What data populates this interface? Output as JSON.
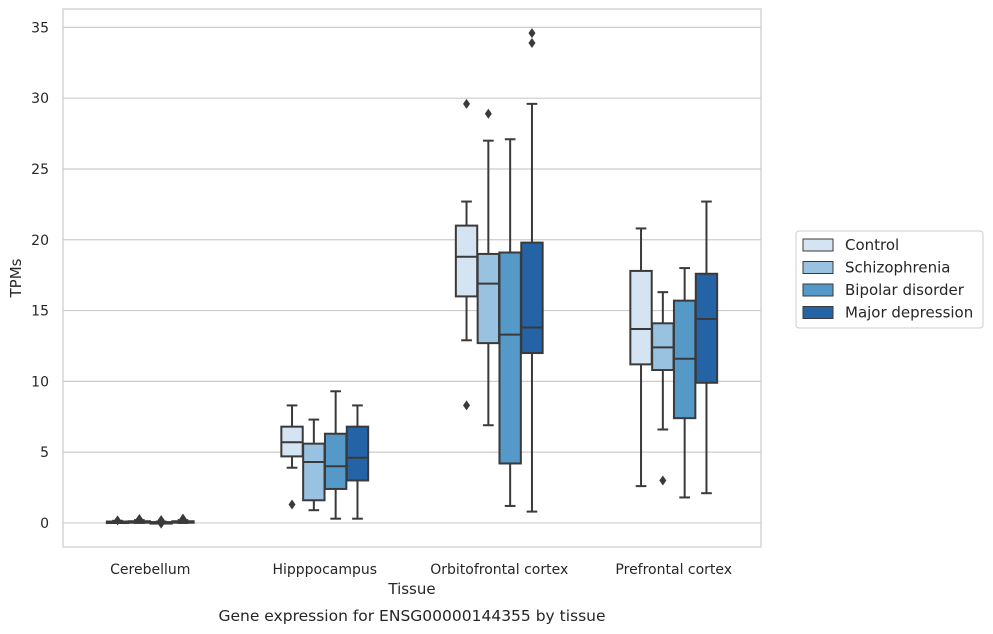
{
  "caption": "Gene expression for ENSG00000144355 by tissue",
  "colors": {
    "grid": "#cccccc",
    "frame": "#cccccc",
    "line": "#3a3a3a",
    "text": "#262626"
  },
  "chart_data": {
    "type": "box",
    "xlabel": "Tissue",
    "ylabel": "TPMs",
    "ylim": [
      -1.7,
      36.3
    ],
    "yticks": [
      0,
      5,
      10,
      15,
      20,
      25,
      30,
      35
    ],
    "grid": true,
    "legend_position": "right",
    "categories": [
      "Cerebellum",
      "Hipppocampus",
      "Orbitofrontal cortex",
      "Prefrontal cortex"
    ],
    "series": [
      {
        "name": "Control",
        "color": "#d5e4f3",
        "boxes": [
          {
            "whislo": 0.0,
            "q1": 0.02,
            "med": 0.05,
            "q3": 0.1,
            "whishi": 0.15,
            "fliers": [
              0.18
            ]
          },
          {
            "whislo": 3.9,
            "q1": 4.7,
            "med": 5.7,
            "q3": 6.8,
            "whishi": 8.3,
            "fliers": [
              1.3
            ]
          },
          {
            "whislo": 12.9,
            "q1": 16.0,
            "med": 18.8,
            "q3": 21.0,
            "whishi": 22.7,
            "fliers": [
              29.6,
              8.3
            ]
          },
          {
            "whislo": 2.6,
            "q1": 11.2,
            "med": 13.7,
            "q3": 17.8,
            "whishi": 20.8,
            "fliers": []
          }
        ]
      },
      {
        "name": "Schizophrenia",
        "color": "#98c2df",
        "boxes": [
          {
            "whislo": 0.0,
            "q1": 0.03,
            "med": 0.07,
            "q3": 0.12,
            "whishi": 0.2,
            "fliers": [
              0.28
            ]
          },
          {
            "whislo": 0.9,
            "q1": 1.6,
            "med": 4.3,
            "q3": 5.6,
            "whishi": 7.3,
            "fliers": []
          },
          {
            "whislo": 6.9,
            "q1": 12.7,
            "med": 16.9,
            "q3": 19.0,
            "whishi": 27.0,
            "fliers": [
              28.9
            ]
          },
          {
            "whislo": 6.6,
            "q1": 10.8,
            "med": 12.4,
            "q3": 14.1,
            "whishi": 16.3,
            "fliers": [
              3.0
            ]
          }
        ]
      },
      {
        "name": "Bipolar disorder",
        "color": "#5599c8",
        "boxes": [
          {
            "whislo": 0.0,
            "q1": 0.01,
            "med": 0.03,
            "q3": 0.06,
            "whishi": 0.1,
            "fliers": [
              0.2,
              -0.05
            ]
          },
          {
            "whislo": 0.3,
            "q1": 2.4,
            "med": 4.0,
            "q3": 6.3,
            "whishi": 9.3,
            "fliers": []
          },
          {
            "whislo": 1.2,
            "q1": 4.2,
            "med": 13.3,
            "q3": 19.1,
            "whishi": 27.1,
            "fliers": []
          },
          {
            "whislo": 1.8,
            "q1": 7.4,
            "med": 11.6,
            "q3": 15.7,
            "whishi": 18.0,
            "fliers": []
          }
        ]
      },
      {
        "name": "Major depression",
        "color": "#2463a6",
        "boxes": [
          {
            "whislo": 0.0,
            "q1": 0.03,
            "med": 0.07,
            "q3": 0.12,
            "whishi": 0.2,
            "fliers": [
              0.3
            ]
          },
          {
            "whislo": 0.3,
            "q1": 3.0,
            "med": 4.6,
            "q3": 6.8,
            "whishi": 8.3,
            "fliers": []
          },
          {
            "whislo": 0.8,
            "q1": 12.0,
            "med": 13.8,
            "q3": 19.8,
            "whishi": 29.6,
            "fliers": [
              33.9,
              34.6
            ]
          },
          {
            "whislo": 2.1,
            "q1": 9.9,
            "med": 14.4,
            "q3": 17.6,
            "whishi": 22.7,
            "fliers": []
          }
        ]
      }
    ]
  }
}
